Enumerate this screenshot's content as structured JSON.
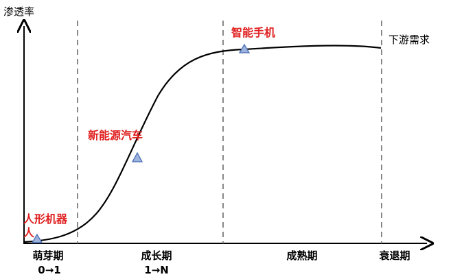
{
  "y_axis_label": "渗透率",
  "curve_label": "下游需求",
  "stages": [
    {
      "name": "萌芽期",
      "transition": "0→1"
    },
    {
      "name": "成长期",
      "transition": "1→N"
    },
    {
      "name": "成熟期"
    },
    {
      "name": "衰退期"
    }
  ],
  "points": [
    {
      "label": "人形机器人"
    },
    {
      "label": "新能源汽车"
    },
    {
      "label": "智能手机"
    }
  ]
}
